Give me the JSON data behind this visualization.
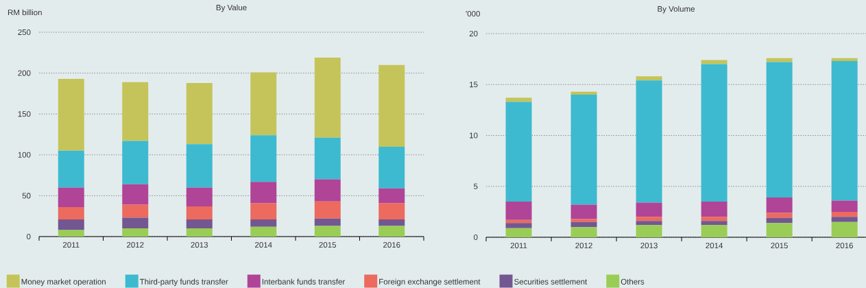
{
  "chart_data": [
    {
      "type": "bar",
      "stacked": true,
      "title": "By Value",
      "ylabel": "RM billion",
      "categories": [
        "2011",
        "2012",
        "2013",
        "2014",
        "2015",
        "2016"
      ],
      "ylim": [
        0,
        250
      ],
      "yticks": [
        0,
        50,
        100,
        150,
        200,
        250
      ],
      "grid": "y",
      "legend": "bottom",
      "series": [
        {
          "name": "Others",
          "color": "#9acd55",
          "values": [
            8,
            10,
            10,
            12,
            13,
            13
          ]
        },
        {
          "name": "Securities settlement",
          "color": "#735791",
          "values": [
            13,
            13,
            11,
            9,
            9,
            8
          ]
        },
        {
          "name": "Foreign exchange settlement",
          "color": "#ec6a5e",
          "values": [
            15,
            16,
            16,
            20,
            21,
            20
          ]
        },
        {
          "name": "Interbank funds transfer",
          "color": "#b04497",
          "values": [
            24,
            25,
            23,
            26,
            27,
            18
          ]
        },
        {
          "name": "Third-party funds transfer",
          "color": "#3dbacf",
          "values": [
            45,
            53,
            53,
            57,
            51,
            51
          ]
        },
        {
          "name": "Money market operation",
          "color": "#c5c45a",
          "values": [
            88,
            72,
            75,
            77,
            98,
            100
          ]
        }
      ]
    },
    {
      "type": "bar",
      "stacked": true,
      "title": "By Volume",
      "ylabel": "'000",
      "categories": [
        "2011",
        "2012",
        "2013",
        "2014",
        "2015",
        "2016"
      ],
      "ylim": [
        0,
        20
      ],
      "yticks": [
        0,
        5,
        10,
        15,
        20
      ],
      "grid": "y",
      "series": [
        {
          "color": "#9acd55",
          "values": [
            0.9,
            1.0,
            1.2,
            1.2,
            1.4,
            1.5
          ]
        },
        {
          "color": "#735791",
          "values": [
            0.5,
            0.5,
            0.4,
            0.4,
            0.5,
            0.5
          ]
        },
        {
          "color": "#ec6a5e",
          "values": [
            0.3,
            0.3,
            0.4,
            0.4,
            0.5,
            0.5
          ]
        },
        {
          "color": "#b04497",
          "values": [
            1.8,
            1.4,
            1.4,
            1.5,
            1.5,
            1.1
          ]
        },
        {
          "color": "#3dbacf",
          "values": [
            9.8,
            10.8,
            12.0,
            13.5,
            13.3,
            13.7
          ]
        },
        {
          "color": "#c5c45a",
          "values": [
            0.4,
            0.3,
            0.4,
            0.4,
            0.4,
            0.3
          ]
        }
      ]
    }
  ]
}
